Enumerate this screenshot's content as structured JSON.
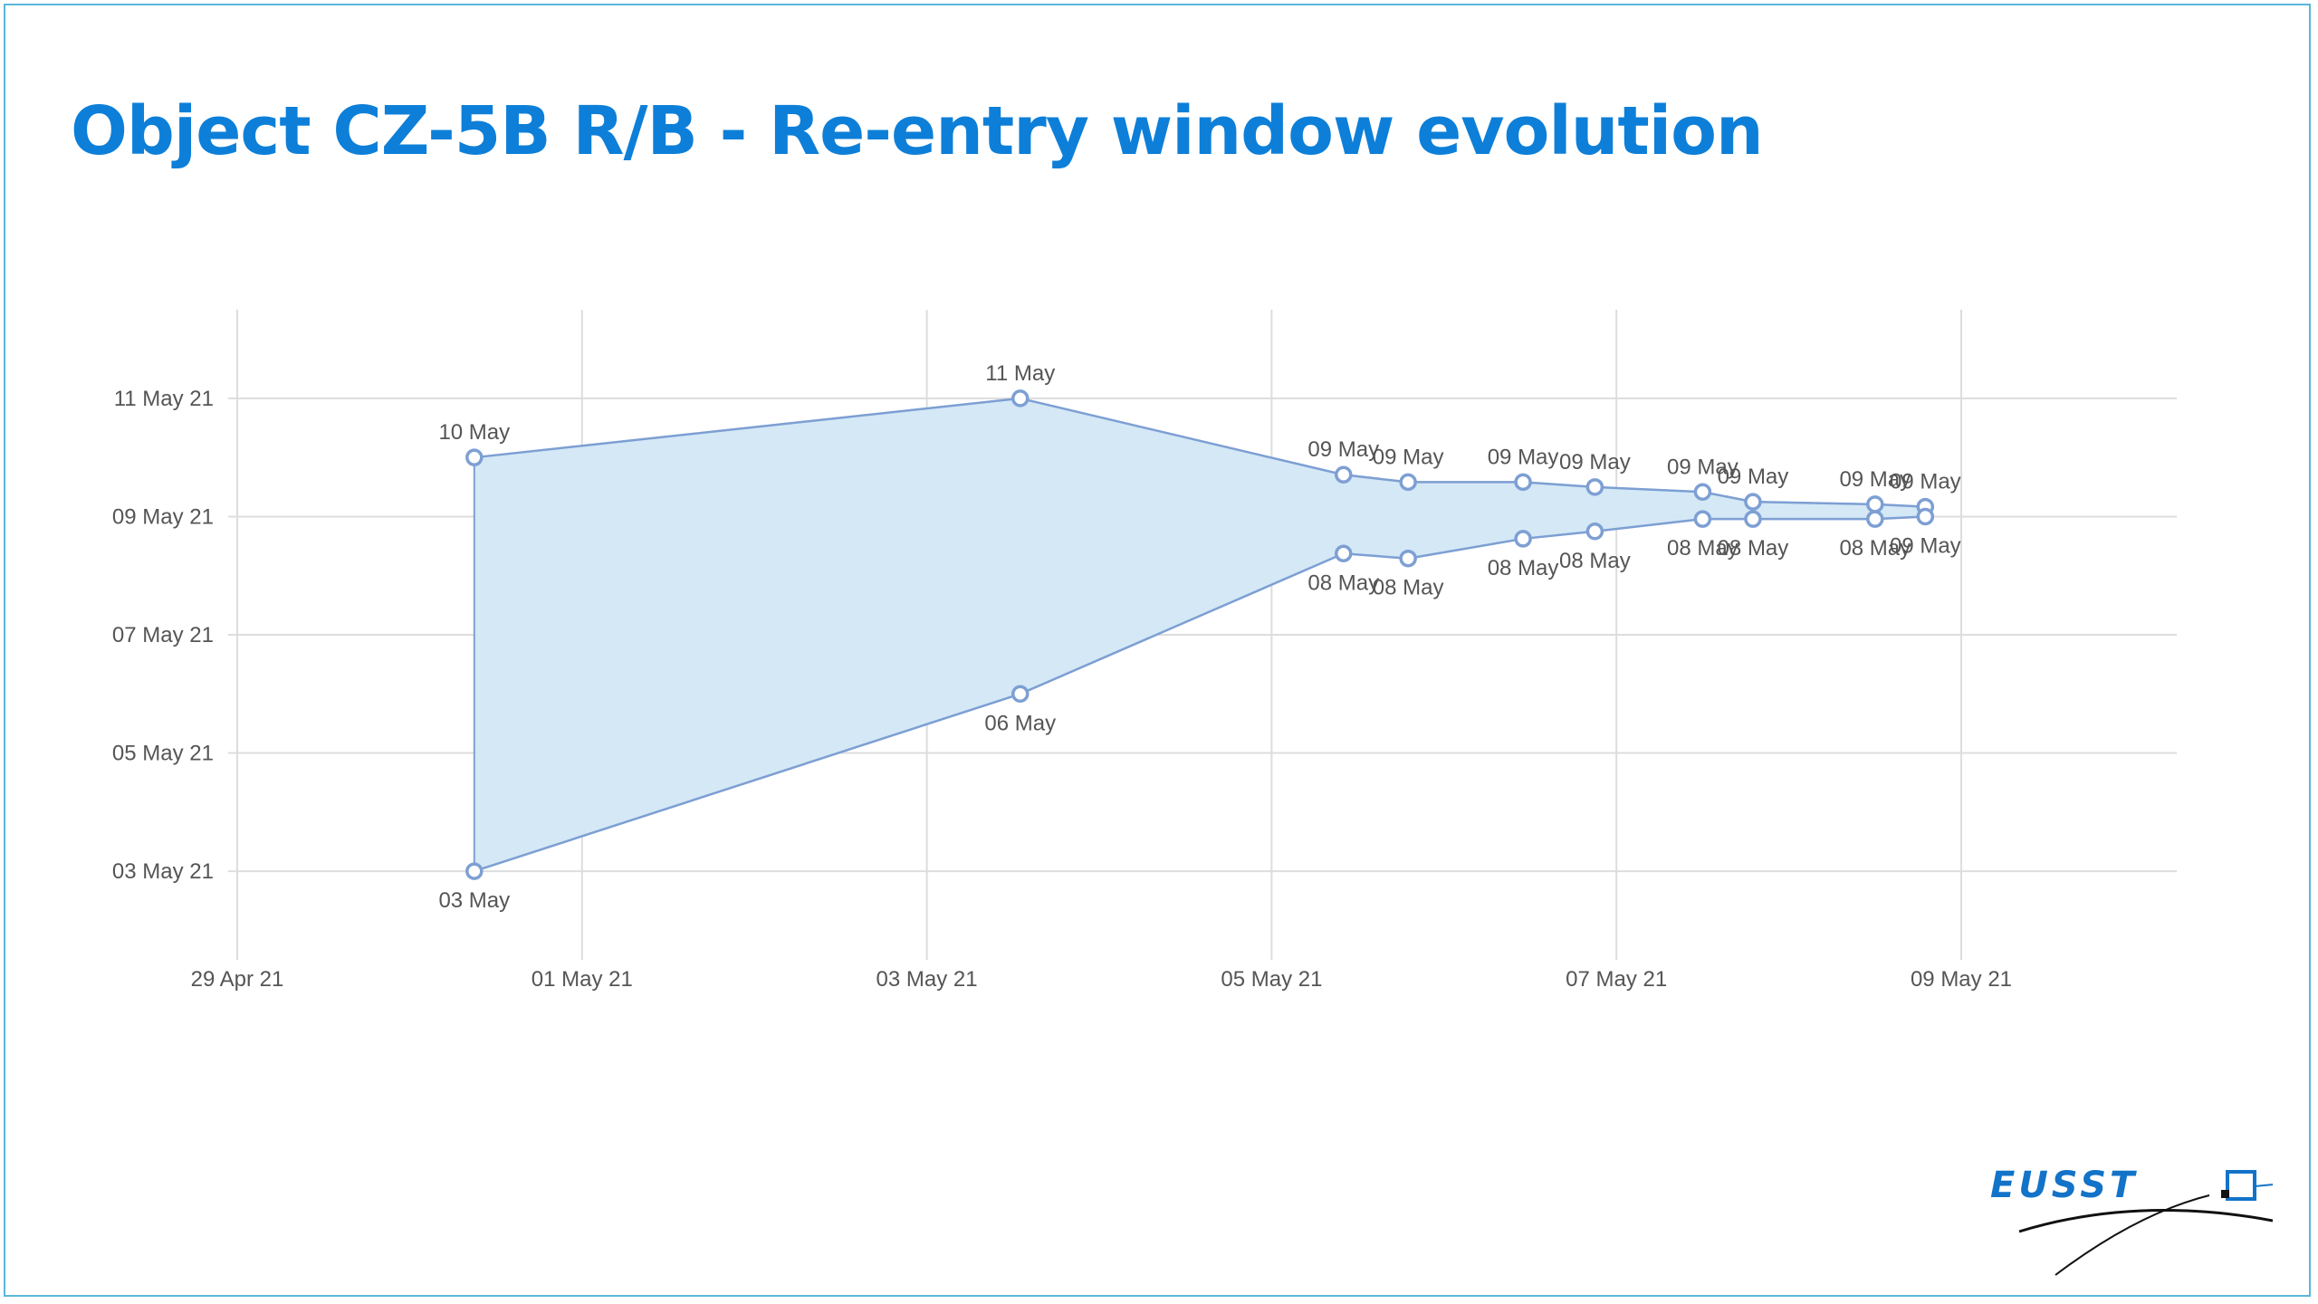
{
  "title": "Object CZ-5B R/B - Re-entry window evolution",
  "logo": {
    "text": "EUSST"
  },
  "colors": {
    "title": "#0d7fd8",
    "area_fill": "#d2e7f6",
    "line": "#7d9fd3",
    "grid": "#dddddd",
    "frame": "#5bb7da",
    "logo": "#1273c8"
  },
  "chart_data": {
    "type": "area",
    "title": "",
    "xlabel": "",
    "ylabel": "",
    "grid": true,
    "x_tick_labels": [
      "29 Apr 21",
      "01 May 21",
      "03 May 21",
      "05 May 21",
      "07 May 21",
      "09 May 21"
    ],
    "y_tick_labels": [
      "11 May 21",
      "09 May 21",
      "07 May 21",
      "05 May 21",
      "03 May 21"
    ],
    "x_ticks": [
      "2021-04-29",
      "2021-05-01",
      "2021-05-03",
      "2021-05-05",
      "2021-05-07",
      "2021-05-09"
    ],
    "y_ticks": [
      "2021-05-11",
      "2021-05-09",
      "2021-05-07",
      "2021-05-05",
      "2021-05-03"
    ],
    "xlim": [
      "2021-04-29",
      "2021-05-10 06:00"
    ],
    "ylim": [
      "2021-05-01 12:00",
      "2021-05-12 12:00"
    ],
    "series": [
      {
        "points": [
          {
            "x": "2021-04-30 09:00",
            "y": "2021-05-10 00:00",
            "label": "10 May"
          },
          {
            "x": "2021-05-03 13:00",
            "y": "2021-05-11 00:00",
            "label": "11 May"
          },
          {
            "x": "2021-05-05 10:00",
            "y": "2021-05-09 17:00",
            "label": "09 May"
          },
          {
            "x": "2021-05-05 19:00",
            "y": "2021-05-09 14:00",
            "label": "09 May"
          },
          {
            "x": "2021-05-06 11:00",
            "y": "2021-05-09 14:00",
            "label": "09 May"
          },
          {
            "x": "2021-05-06 21:00",
            "y": "2021-05-09 12:00",
            "label": "09 May"
          },
          {
            "x": "2021-05-07 12:00",
            "y": "2021-05-09 10:00",
            "label": "09 May"
          },
          {
            "x": "2021-05-07 19:00",
            "y": "2021-05-09 06:00",
            "label": "09 May"
          },
          {
            "x": "2021-05-08 12:00",
            "y": "2021-05-09 05:00",
            "label": "09 May"
          },
          {
            "x": "2021-05-08 19:00",
            "y": "2021-05-09 04:00",
            "label": "09 May"
          }
        ]
      },
      {
        "points": [
          {
            "x": "2021-04-30 09:00",
            "y": "2021-05-03 00:00",
            "label": "03 May"
          },
          {
            "x": "2021-05-03 13:00",
            "y": "2021-05-06 00:00",
            "label": "06 May"
          },
          {
            "x": "2021-05-05 10:00",
            "y": "2021-05-08 09:00",
            "label": "08 May"
          },
          {
            "x": "2021-05-05 19:00",
            "y": "2021-05-08 07:00",
            "label": "08 May"
          },
          {
            "x": "2021-05-06 11:00",
            "y": "2021-05-08 15:00",
            "label": "08 May"
          },
          {
            "x": "2021-05-06 21:00",
            "y": "2021-05-08 18:00",
            "label": "08 May"
          },
          {
            "x": "2021-05-07 12:00",
            "y": "2021-05-08 23:00",
            "label": "08 May"
          },
          {
            "x": "2021-05-07 19:00",
            "y": "2021-05-08 23:00",
            "label": "08 May"
          },
          {
            "x": "2021-05-08 12:00",
            "y": "2021-05-08 23:00",
            "label": "08 May"
          },
          {
            "x": "2021-05-08 19:00",
            "y": "2021-05-09 00:00",
            "label": "09 May"
          }
        ]
      }
    ]
  }
}
